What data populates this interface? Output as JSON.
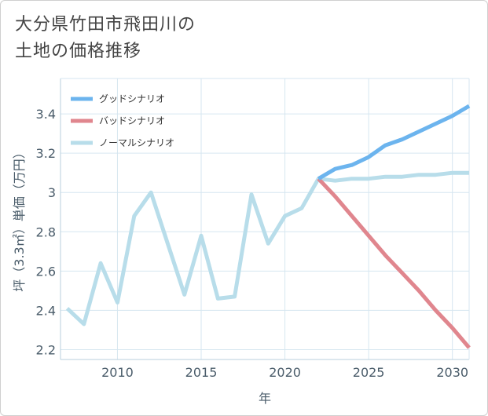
{
  "title": {
    "line1": "大分県竹田市飛田川の",
    "line2": "土地の価格推移"
  },
  "chart_data": {
    "type": "line",
    "title": "大分県竹田市飛田川の土地の価格推移",
    "xlabel": "年",
    "ylabel": "坪（3.3㎡）単価（万円）",
    "xlim": [
      2006.6,
      2031
    ],
    "ylim": [
      2.15,
      3.58
    ],
    "xticks": [
      2010,
      2015,
      2020,
      2025,
      2030
    ],
    "yticks": [
      2.2,
      2.4,
      2.6,
      2.8,
      3,
      3.2,
      3.4
    ],
    "ytick_labels": [
      "2.2",
      "2.4",
      "2.6",
      "2.8",
      "3",
      "3.2",
      "3.4"
    ],
    "grid": true,
    "legend_position": "top-left",
    "series": [
      {
        "name": "グッドシナリオ",
        "color": "#6cb4ee",
        "x": [
          2022,
          2023,
          2024,
          2025,
          2026,
          2027,
          2028,
          2029,
          2030,
          2031
        ],
        "values": [
          3.07,
          3.12,
          3.14,
          3.18,
          3.24,
          3.27,
          3.31,
          3.35,
          3.39,
          3.44
        ]
      },
      {
        "name": "バッドシナリオ",
        "color": "#e0868e",
        "x": [
          2022,
          2023,
          2024,
          2025,
          2026,
          2027,
          2028,
          2029,
          2030,
          2031
        ],
        "values": [
          3.07,
          2.98,
          2.88,
          2.78,
          2.68,
          2.59,
          2.5,
          2.4,
          2.31,
          2.21
        ]
      },
      {
        "name": "ノーマルシナリオ",
        "color": "#b8ddea",
        "x": [
          2007,
          2008,
          2009,
          2010,
          2011,
          2012,
          2013,
          2014,
          2015,
          2016,
          2017,
          2018,
          2019,
          2020,
          2021,
          2022,
          2023,
          2024,
          2025,
          2026,
          2027,
          2028,
          2029,
          2030,
          2031
        ],
        "values": [
          2.41,
          2.33,
          2.64,
          2.44,
          2.88,
          3.0,
          2.74,
          2.48,
          2.78,
          2.46,
          2.47,
          2.99,
          2.74,
          2.88,
          2.92,
          3.07,
          3.06,
          3.07,
          3.07,
          3.08,
          3.08,
          3.09,
          3.09,
          3.1,
          3.1
        ]
      }
    ]
  }
}
